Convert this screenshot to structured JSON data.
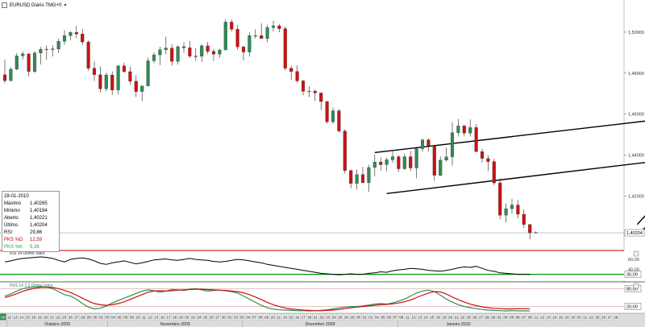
{
  "toolbar": {
    "title": "EURUSD Diário TMG+0",
    "menu_arrow": "▾"
  },
  "info_panel": {
    "date": "28-01-2010",
    "rows": [
      {
        "label": "Máximo",
        "value": "1,40265",
        "color": "#000000"
      },
      {
        "label": "Mínimo",
        "value": "1,40194",
        "color": "#000000"
      },
      {
        "label": "Aberto",
        "value": "1,40221",
        "color": "#000000"
      },
      {
        "label": "Último",
        "value": "1,40204",
        "color": "#000000"
      },
      {
        "label": "RSI",
        "value": "29,86",
        "color": "#000000"
      },
      {
        "label": "PKS %D",
        "value": "12,59",
        "color": "#cc0000"
      },
      {
        "label": "PKS %K",
        "value": "5,36",
        "color": "#339966"
      }
    ]
  },
  "colors": {
    "up_candle": "#2e8b57",
    "down_candle": "#cc1111",
    "rsi_line": "#000000",
    "stoch_k": "#2e8b57",
    "stoch_d": "#cc1111",
    "separator_red": "#cc0000",
    "separator_green": "#009900"
  },
  "chart_data": [
    {
      "type": "candlestick",
      "title": "EURUSD Diário TMG+0",
      "y_ticks": [
        "1,50000",
        "1,48000",
        "1,46000",
        "1,44000",
        "1,42000"
      ],
      "y_tick_values": [
        1.5,
        1.48,
        1.46,
        1.44,
        1.42
      ],
      "ylim": [
        1.3938,
        1.5149
      ],
      "last_price_label": "1,40204",
      "last_price": 1.40204,
      "candles": [
        [
          1.4792,
          1.4866,
          1.4751,
          1.4763
        ],
        [
          1.4763,
          1.4829,
          1.476,
          1.4819
        ],
        [
          1.4819,
          1.4897,
          1.4814,
          1.4884
        ],
        [
          1.4884,
          1.4905,
          1.4865,
          1.4894
        ],
        [
          1.4894,
          1.4895,
          1.4784,
          1.4808
        ],
        [
          1.4808,
          1.4907,
          1.4801,
          1.4898
        ],
        [
          1.4898,
          1.4928,
          1.4842,
          1.4916
        ],
        [
          1.4916,
          1.4935,
          1.4865,
          1.4917
        ],
        [
          1.4917,
          1.4936,
          1.4881,
          1.4918
        ],
        [
          1.4918,
          1.4969,
          1.4899,
          1.4955
        ],
        [
          1.4955,
          1.501,
          1.4938,
          1.4983
        ],
        [
          1.4983,
          1.5005,
          1.4961,
          1.4999
        ],
        [
          1.4999,
          1.5031,
          1.497,
          1.4991
        ],
        [
          1.4991,
          1.5016,
          1.4937,
          1.4952
        ],
        [
          1.4952,
          1.496,
          1.4812,
          1.4824
        ],
        [
          1.4824,
          1.4857,
          1.4761,
          1.4792
        ],
        [
          1.4792,
          1.4833,
          1.4705,
          1.4723
        ],
        [
          1.4723,
          1.4802,
          1.471,
          1.4791
        ],
        [
          1.4791,
          1.4808,
          1.4694,
          1.4717
        ],
        [
          1.4717,
          1.4839,
          1.4696,
          1.4835
        ],
        [
          1.4835,
          1.4851,
          1.4802,
          1.4807
        ],
        [
          1.4807,
          1.4832,
          1.4742,
          1.476
        ],
        [
          1.476,
          1.479,
          1.4683,
          1.471
        ],
        [
          1.471,
          1.4739,
          1.4664,
          1.4737
        ],
        [
          1.4737,
          1.4876,
          1.4735,
          1.486
        ],
        [
          1.486,
          1.4901,
          1.4848,
          1.4889
        ],
        [
          1.4889,
          1.4929,
          1.4839,
          1.4914
        ],
        [
          1.4914,
          1.4978,
          1.4892,
          1.4922
        ],
        [
          1.4922,
          1.4941,
          1.4837,
          1.4857
        ],
        [
          1.4857,
          1.4935,
          1.4842,
          1.4929
        ],
        [
          1.4929,
          1.4951,
          1.4899,
          1.4924
        ],
        [
          1.4924,
          1.4957,
          1.4874,
          1.4883
        ],
        [
          1.4883,
          1.4922,
          1.486,
          1.4882
        ],
        [
          1.4882,
          1.494,
          1.4854,
          1.4933
        ],
        [
          1.4933,
          1.4952,
          1.4894,
          1.4906
        ],
        [
          1.4906,
          1.4919,
          1.4859,
          1.4892
        ],
        [
          1.4892,
          1.4918,
          1.4875,
          1.4913
        ],
        [
          1.4913,
          1.5062,
          1.4913,
          1.5049
        ],
        [
          1.5049,
          1.5062,
          1.5002,
          1.5014
        ],
        [
          1.5014,
          1.5035,
          1.4914,
          1.4928
        ],
        [
          1.4928,
          1.4935,
          1.4862,
          1.4903
        ],
        [
          1.4903,
          1.4998,
          1.488,
          1.4983
        ],
        [
          1.4983,
          1.5014,
          1.4969,
          1.4983
        ],
        [
          1.4983,
          1.5043,
          1.4966,
          1.4969
        ],
        [
          1.4969,
          1.5036,
          1.4951,
          1.5022
        ],
        [
          1.5022,
          1.5055,
          1.5003,
          1.5031
        ],
        [
          1.5031,
          1.5039,
          1.4999,
          1.5017
        ],
        [
          1.5017,
          1.5027,
          1.4813,
          1.4824
        ],
        [
          1.4824,
          1.4837,
          1.4768,
          1.4808
        ],
        [
          1.4808,
          1.4838,
          1.4754,
          1.4762
        ],
        [
          1.4762,
          1.4767,
          1.4692,
          1.4711
        ],
        [
          1.4711,
          1.4736,
          1.4682,
          1.4712
        ],
        [
          1.4712,
          1.472,
          1.4663,
          1.4703
        ],
        [
          1.4703,
          1.4705,
          1.462,
          1.4661
        ],
        [
          1.4661,
          1.4664,
          1.4554,
          1.4562
        ],
        [
          1.4562,
          1.4632,
          1.4553,
          1.4616
        ],
        [
          1.4616,
          1.4625,
          1.4509,
          1.4517
        ],
        [
          1.4517,
          1.4526,
          1.431,
          1.4324
        ],
        [
          1.4324,
          1.4329,
          1.4238,
          1.4261
        ],
        [
          1.4261,
          1.433,
          1.4232,
          1.4305
        ],
        [
          1.4305,
          1.4342,
          1.4262,
          1.4265
        ],
        [
          1.4265,
          1.4353,
          1.4221,
          1.4339
        ],
        [
          1.4339,
          1.4404,
          1.4297,
          1.4366
        ],
        [
          1.4366,
          1.4389,
          1.4324,
          1.4353
        ],
        [
          1.4353,
          1.4387,
          1.4321,
          1.4377
        ],
        [
          1.4377,
          1.4418,
          1.4362,
          1.4392
        ],
        [
          1.4392,
          1.4399,
          1.4317,
          1.4333
        ],
        [
          1.4333,
          1.4407,
          1.4328,
          1.4392
        ],
        [
          1.4392,
          1.442,
          1.4322,
          1.4337
        ],
        [
          1.4337,
          1.4439,
          1.4286,
          1.4431
        ],
        [
          1.4431,
          1.448,
          1.4416,
          1.4474
        ],
        [
          1.4474,
          1.4482,
          1.4416,
          1.4445
        ],
        [
          1.4445,
          1.445,
          1.4273,
          1.4301
        ],
        [
          1.4301,
          1.4393,
          1.4297,
          1.4375
        ],
        [
          1.4375,
          1.4437,
          1.4368,
          1.4391
        ],
        [
          1.4391,
          1.4559,
          1.4349,
          1.4509
        ],
        [
          1.4509,
          1.4576,
          1.4491,
          1.4542
        ],
        [
          1.4542,
          1.4549,
          1.4491,
          1.4507
        ],
        [
          1.4507,
          1.4574,
          1.449,
          1.4534
        ],
        [
          1.4534,
          1.455,
          1.4414,
          1.4417
        ],
        [
          1.4417,
          1.443,
          1.4362,
          1.4383
        ],
        [
          1.4383,
          1.4398,
          1.4322,
          1.4368
        ],
        [
          1.4368,
          1.4381,
          1.4254,
          1.4264
        ],
        [
          1.4264,
          1.4286,
          1.4087,
          1.4106
        ],
        [
          1.4106,
          1.4164,
          1.4071,
          1.4138
        ],
        [
          1.4138,
          1.4185,
          1.4113,
          1.4156
        ],
        [
          1.4156,
          1.418,
          1.4091,
          1.4111
        ],
        [
          1.4111,
          1.4133,
          1.4043,
          1.4061
        ],
        [
          1.4061,
          1.4063,
          1.3989,
          1.402
        ],
        [
          1.4022,
          1.4027,
          1.4019,
          1.402
        ]
      ],
      "trend_lines": [
        {
          "from": [
            62,
            1.4412
          ],
          "to": [
            108,
            1.4568
          ]
        },
        {
          "from": [
            64,
            1.4212
          ],
          "to": [
            112,
            1.438
          ]
        },
        {
          "from": [
            106,
            1.4061
          ],
          "to": [
            110,
            1.4189
          ]
        },
        {
          "from": [
            107,
            1.4036
          ],
          "to": [
            111,
            1.4153
          ]
        }
      ]
    },
    {
      "type": "line",
      "title": "RSI",
      "legend_label": "RSI 14 Último Valor",
      "y_ticks": [
        "60,00",
        "40,00"
      ],
      "y_tick_values": [
        60,
        40
      ],
      "reference_levels": [
        70,
        30
      ],
      "reference_label": "30,00",
      "ylim": [
        18,
        78
      ],
      "values": [
        55,
        57,
        60,
        62,
        63,
        64,
        65,
        64,
        62,
        58,
        55,
        60,
        62,
        63,
        61,
        57,
        52,
        50,
        53,
        55,
        57,
        54,
        51,
        53,
        56,
        59,
        60,
        61,
        59,
        58,
        60,
        62,
        60,
        59,
        58,
        56,
        55,
        56,
        58,
        60,
        59,
        57,
        55,
        53,
        50,
        48,
        46,
        44,
        42,
        40,
        38,
        36,
        34,
        32,
        31,
        30,
        29,
        30,
        31,
        30,
        30,
        32,
        33,
        35,
        34,
        37,
        39,
        40,
        42,
        41,
        40,
        38,
        37,
        36,
        38,
        40,
        43,
        45,
        44,
        46,
        42,
        38,
        36,
        33,
        32,
        31,
        30,
        30,
        29.86
      ]
    },
    {
      "type": "line",
      "title": "PKS",
      "legend_label": "PKS 14 3 3 Último Valor",
      "y_ticks": [
        "80,00",
        "20,00"
      ],
      "y_tick_values": [
        80,
        20
      ],
      "ylim": [
        0,
        100
      ],
      "series": [
        {
          "name": "PKS %K",
          "values": [
            55,
            62,
            72,
            80,
            84,
            86,
            87,
            85,
            80,
            70,
            60,
            55,
            45,
            30,
            18,
            12,
            14,
            22,
            32,
            40,
            48,
            56,
            64,
            72,
            76,
            73,
            68,
            72,
            77,
            76,
            74,
            78,
            80,
            76,
            72,
            74,
            75,
            73,
            70,
            65,
            55,
            45,
            34,
            24,
            16,
            11,
            9,
            8,
            7,
            6,
            6,
            5,
            6,
            7,
            9,
            12,
            15,
            18,
            20,
            20,
            22,
            25,
            28,
            30,
            28,
            32,
            38,
            45,
            55,
            65,
            72,
            75,
            70,
            58,
            45,
            35,
            26,
            20,
            16,
            13,
            10,
            8,
            7,
            6,
            5,
            6,
            5.5,
            5.4,
            5.36
          ]
        },
        {
          "name": "PKS %D",
          "values": [
            50,
            56,
            63,
            71,
            77,
            81,
            84,
            85,
            84,
            80,
            74,
            67,
            58,
            48,
            38,
            30,
            26,
            24,
            26,
            30,
            36,
            44,
            52,
            60,
            68,
            72,
            73,
            72,
            73,
            75,
            76,
            77,
            78,
            78,
            77,
            76,
            75,
            74,
            72,
            70,
            66,
            60,
            52,
            43,
            34,
            26,
            20,
            15,
            12,
            10,
            8,
            7,
            6,
            6,
            7,
            8,
            10,
            13,
            16,
            18,
            20,
            22,
            24,
            26,
            27,
            29,
            32,
            36,
            42,
            50,
            58,
            65,
            70,
            69,
            62,
            52,
            43,
            35,
            28,
            23,
            19,
            16,
            14,
            13,
            12,
            12,
            12.5,
            12.6,
            12.59
          ]
        }
      ]
    }
  ],
  "x_axis": {
    "highlighted_day": "05",
    "day_labels": [
      "06",
      "12",
      "13",
      "14",
      "15",
      "16",
      "19",
      "20",
      "21",
      "22",
      "23",
      "26",
      "27",
      "28",
      "29",
      "30",
      "02",
      "03",
      "04",
      "05",
      "06",
      "09",
      "10",
      "11",
      "12",
      "13",
      "16",
      "17",
      "18",
      "19",
      "20",
      "23",
      "24",
      "25",
      "26",
      "27",
      "30",
      "01",
      "02",
      "03",
      "04",
      "07",
      "08",
      "09",
      "10",
      "11",
      "14",
      "15",
      "16",
      "17",
      "18",
      "21",
      "22",
      "23",
      "24",
      "25",
      "28",
      "29",
      "30",
      "31",
      "01",
      "04",
      "05",
      "06",
      "07",
      "08",
      "11",
      "12",
      "13",
      "14",
      "15",
      "18",
      "19",
      "20",
      "21",
      "22",
      "25",
      "26",
      "27",
      "28",
      "29",
      "01",
      "04",
      "05",
      "06",
      "07",
      "08",
      "11",
      "12",
      "13",
      "14",
      "15",
      "18",
      "19",
      "20",
      "21",
      "22",
      "25",
      "26",
      "27",
      "28"
    ],
    "months": [
      {
        "label": "Outubro 2009",
        "start": 1,
        "end": 16
      },
      {
        "label": "Novembro 2009",
        "start": 16,
        "end": 36
      },
      {
        "label": "Dezembro 2009",
        "start": 36,
        "end": 59
      },
      {
        "label": "Janeiro 2010",
        "start": 59,
        "end": 77
      }
    ]
  }
}
